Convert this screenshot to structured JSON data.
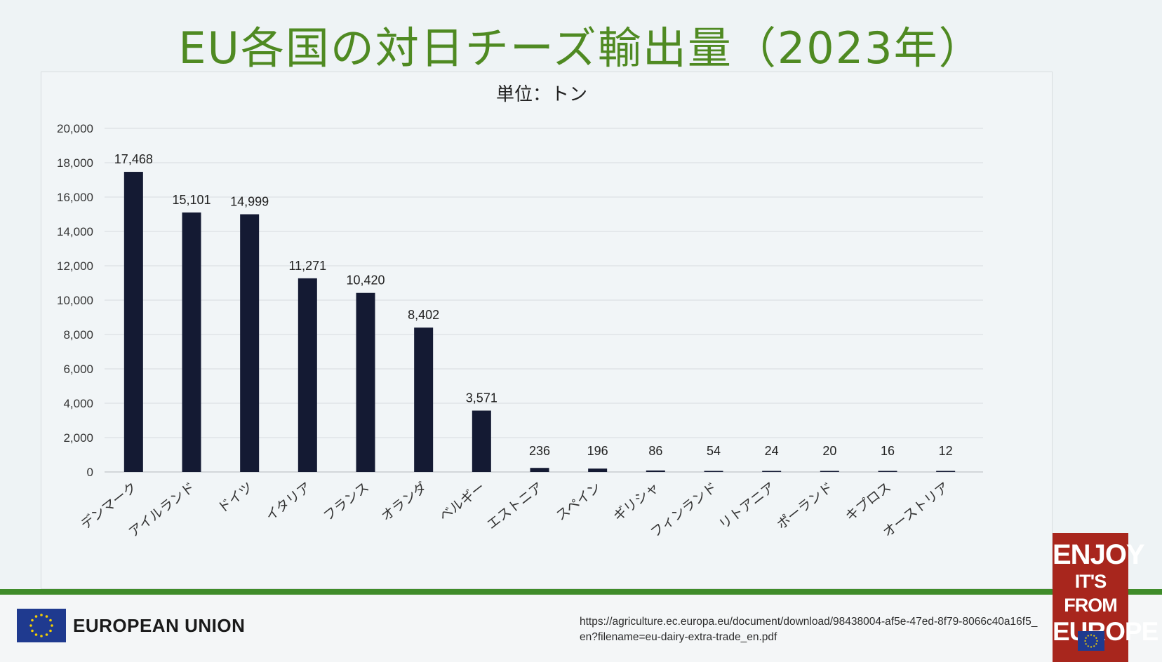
{
  "slide": {
    "title": "EU各国の対日チーズ輸出量（2023年）"
  },
  "chart_data": {
    "type": "bar",
    "unit_label": "単位：トン",
    "categories": [
      "デンマーク",
      "アイルランド",
      "ドイツ",
      "イタリア",
      "フランス",
      "オランダ",
      "ベルギー",
      "エストニア",
      "スペイン",
      "ギリシャ",
      "フィンランド",
      "リトアニア",
      "ポーランド",
      "キプロス",
      "オーストリア"
    ],
    "values": [
      17468,
      15101,
      14999,
      11271,
      10420,
      8402,
      3571,
      236,
      196,
      86,
      54,
      24,
      20,
      16,
      12
    ],
    "value_labels": [
      "17,468",
      "15,101",
      "14,999",
      "11,271",
      "10,420",
      "8,402",
      "3,571",
      "236",
      "196",
      "86",
      "54",
      "24",
      "20",
      "16",
      "12"
    ],
    "ylim": [
      0,
      20000
    ],
    "yticks": [
      "0",
      "2,000",
      "4,000",
      "6,000",
      "8,000",
      "10,000",
      "12,000",
      "14,000",
      "16,000",
      "18,000",
      "20,000"
    ],
    "ytick_values": [
      0,
      2000,
      4000,
      6000,
      8000,
      10000,
      12000,
      14000,
      16000,
      18000,
      20000
    ],
    "grid": true,
    "bar_color": "#141a33"
  },
  "footer": {
    "org_name": "EUROPEAN UNION",
    "source_url": "https://agriculture.ec.europa.eu/document/download/98438004-af5e-47ed-8f79-8066c40a16f5_en?filename=eu-dairy-extra-trade_en.pdf"
  },
  "badge": {
    "line1": "ENJOY",
    "line2": "IT'S FROM",
    "line3": "EUROPE"
  }
}
